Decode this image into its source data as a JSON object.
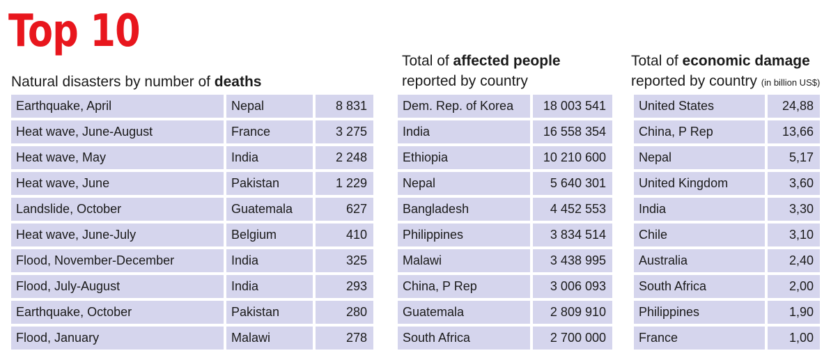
{
  "title": "Top 10",
  "colors": {
    "title": "#e8161d",
    "cell": "#d5d5ed",
    "text": "#1a1a1a"
  },
  "deaths": {
    "heading_prefix": "Natural disasters by number of ",
    "heading_bold": "deaths",
    "rows": [
      {
        "event": "Earthquake, April",
        "country": "Nepal",
        "value": "8 831"
      },
      {
        "event": "Heat wave, June-August",
        "country": "France",
        "value": "3 275"
      },
      {
        "event": "Heat wave, May",
        "country": "India",
        "value": "2 248"
      },
      {
        "event": "Heat wave, June",
        "country": "Pakistan",
        "value": "1 229"
      },
      {
        "event": "Landslide, October",
        "country": "Guatemala",
        "value": "627"
      },
      {
        "event": "Heat wave, June-July",
        "country": "Belgium",
        "value": "410"
      },
      {
        "event": "Flood, November-December",
        "country": "India",
        "value": "325"
      },
      {
        "event": "Flood, July-August",
        "country": "India",
        "value": "293"
      },
      {
        "event": "Earthquake, October",
        "country": "Pakistan",
        "value": "280"
      },
      {
        "event": "Flood, January",
        "country": "Malawi",
        "value": "278"
      }
    ]
  },
  "affected": {
    "heading_prefix": "Total of ",
    "heading_bold": "affected people",
    "heading_line2": "reported by country",
    "rows": [
      {
        "country": "Dem. Rep. of Korea",
        "value": "18 003 541"
      },
      {
        "country": "India",
        "value": "16 558 354"
      },
      {
        "country": "Ethiopia",
        "value": "10 210 600"
      },
      {
        "country": "Nepal",
        "value": "5 640 301"
      },
      {
        "country": "Bangladesh",
        "value": "4 452 553"
      },
      {
        "country": "Philippines",
        "value": "3 834 514"
      },
      {
        "country": "Malawi",
        "value": "3 438 995"
      },
      {
        "country": "China, P Rep",
        "value": "3 006 093"
      },
      {
        "country": "Guatemala",
        "value": "2 809 910"
      },
      {
        "country": "South Africa",
        "value": "2 700 000"
      }
    ]
  },
  "damage": {
    "heading_prefix": "Total of ",
    "heading_bold": "economic damage",
    "heading_line2": "reported by country ",
    "heading_unit": "(in billion US$)",
    "rows": [
      {
        "country": "United States",
        "value": "24,88"
      },
      {
        "country": "China, P Rep",
        "value": "13,66"
      },
      {
        "country": "Nepal",
        "value": "5,17"
      },
      {
        "country": "United Kingdom",
        "value": "3,60"
      },
      {
        "country": "India",
        "value": "3,30"
      },
      {
        "country": "Chile",
        "value": "3,10"
      },
      {
        "country": "Australia",
        "value": "2,40"
      },
      {
        "country": "South Africa",
        "value": "2,00"
      },
      {
        "country": "Philippines",
        "value": "1,90"
      },
      {
        "country": "France",
        "value": "1,00"
      }
    ]
  },
  "chart_data": [
    {
      "type": "table",
      "title": "Natural disasters by number of deaths",
      "columns": [],
      "rows": [
        [
          "Earthquake, April",
          "Nepal",
          8831
        ],
        [
          "Heat wave, June-August",
          "France",
          3275
        ],
        [
          "Heat wave, May",
          "India",
          2248
        ],
        [
          "Heat wave, June",
          "Pakistan",
          1229
        ],
        [
          "Landslide, October",
          "Guatemala",
          627
        ],
        [
          "Heat wave, June-July",
          "Belgium",
          410
        ],
        [
          "Flood, November-December",
          "India",
          325
        ],
        [
          "Flood, July-August",
          "India",
          293
        ],
        [
          "Earthquake, October",
          "Pakistan",
          280
        ],
        [
          "Flood, January",
          "Malawi",
          278
        ]
      ]
    },
    {
      "type": "table",
      "title": "Total of affected people reported by country",
      "columns": [],
      "rows": [
        [
          "Dem. Rep. of Korea",
          18003541
        ],
        [
          "India",
          16558354
        ],
        [
          "Ethiopia",
          10210600
        ],
        [
          "Nepal",
          5640301
        ],
        [
          "Bangladesh",
          4452553
        ],
        [
          "Philippines",
          3834514
        ],
        [
          "Malawi",
          3438995
        ],
        [
          "China, P Rep",
          3006093
        ],
        [
          "Guatemala",
          2809910
        ],
        [
          "South Africa",
          2700000
        ]
      ]
    },
    {
      "type": "table",
      "title": "Total of economic damage reported by country (in billion US$)",
      "columns": [],
      "rows": [
        [
          "United States",
          24.88
        ],
        [
          "China, P Rep",
          13.66
        ],
        [
          "Nepal",
          5.17
        ],
        [
          "United Kingdom",
          3.6
        ],
        [
          "India",
          3.3
        ],
        [
          "Chile",
          3.1
        ],
        [
          "Australia",
          2.4
        ],
        [
          "South Africa",
          2.0
        ],
        [
          "Philippines",
          1.9
        ],
        [
          "France",
          1.0
        ]
      ]
    }
  ]
}
